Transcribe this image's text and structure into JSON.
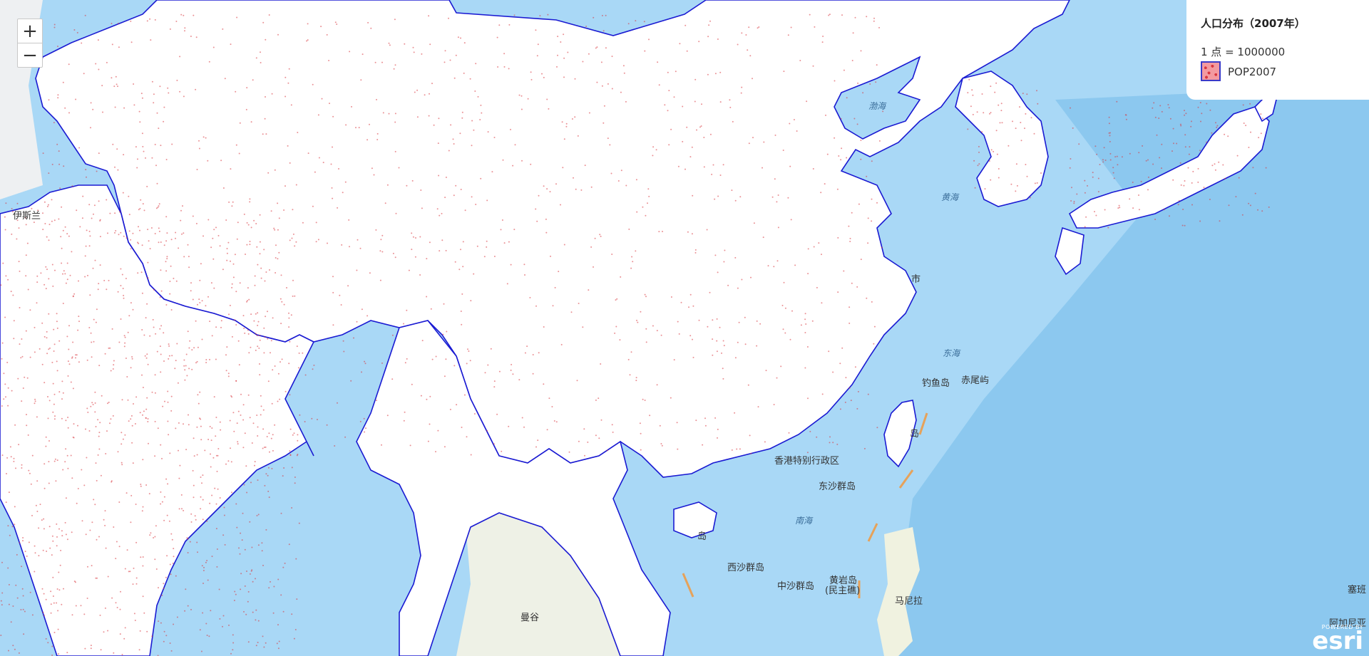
{
  "zoom": {
    "in_label": "+",
    "out_label": "−"
  },
  "legend": {
    "title": "人口分布（2007年）",
    "scale_text": "1 点 = 1000000",
    "layer_label": "POP2007",
    "dot_color": "#d9363e"
  },
  "colors": {
    "land_china": "#ffffff",
    "ocean": "#a9d8f6",
    "border": "#1a1ad2"
  },
  "labels": {
    "bohai": "渤海",
    "huanghai": "黄海",
    "donghai": "东海",
    "nanhai": "南海",
    "diaoyudao": "钓鱼岛",
    "chiweiyu": "赤尾屿",
    "hongkong": "香港特别行政区",
    "dongsha": "东沙群岛",
    "xisha": "西沙群岛",
    "zhongsha": "中沙群岛",
    "huangyan": "黄岩岛",
    "huangyan_sub": "(民主礁)",
    "manila": "马尼拉",
    "bangkok": "曼谷",
    "shi": "市",
    "islamabad": "伊斯兰",
    "hainan_dao": "岛",
    "taiwan_dao": "岛",
    "saiban": "塞班",
    "aganiya": "阿加尼亚"
  },
  "attribution": {
    "powered_by": "POWERED BY",
    "logo": "esri"
  }
}
